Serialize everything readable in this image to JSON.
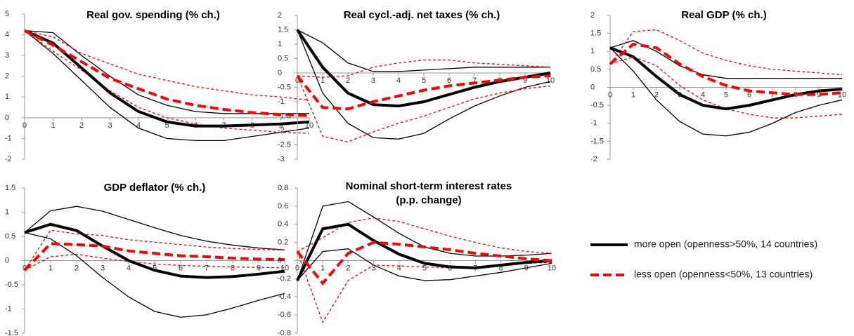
{
  "legend": [
    {
      "name": "more open (openness>50%, 14 countries)",
      "color": "#000000",
      "dashed": false
    },
    {
      "name": "less open (openness<50%, 13 countries)",
      "color": "#ff0000",
      "dashed": true
    }
  ],
  "chart_data": [
    {
      "type": "line",
      "title": "Real gov. spending (% ch.)",
      "x": [
        0,
        1,
        2,
        3,
        4,
        5,
        6,
        7,
        8,
        9,
        10
      ],
      "xlim": [
        0,
        10
      ],
      "xticks": [
        0,
        1,
        2,
        3,
        4,
        5,
        6,
        7,
        8,
        9,
        10
      ],
      "ylim": [
        -2,
        5
      ],
      "yticks": [
        -2,
        -1,
        0,
        1,
        2,
        3,
        4,
        5
      ],
      "series": [
        {
          "values": [
            4.2,
            3.6,
            2.4,
            1.2,
            0.3,
            -0.2,
            -0.4,
            -0.4,
            -0.35,
            -0.3,
            -0.2
          ],
          "upper": [
            4.2,
            4.1,
            3.0,
            2.0,
            1.1,
            0.6,
            0.3,
            0.2,
            0.2,
            0.2,
            0.2
          ],
          "lower": [
            4.2,
            3.1,
            1.8,
            0.5,
            -0.5,
            -1.0,
            -1.1,
            -1.1,
            -0.9,
            -0.7,
            -0.5
          ]
        },
        {
          "values": [
            4.2,
            3.5,
            2.7,
            1.9,
            1.4,
            0.9,
            0.6,
            0.4,
            0.25,
            0.15,
            0.1
          ],
          "upper": [
            4.2,
            3.9,
            3.1,
            2.6,
            2.1,
            1.8,
            1.5,
            1.3,
            1.1,
            1.0,
            0.85
          ],
          "lower": [
            4.2,
            3.2,
            2.3,
            1.3,
            0.5,
            0.0,
            -0.3,
            -0.5,
            -0.6,
            -0.7,
            -0.75
          ]
        }
      ]
    },
    {
      "type": "line",
      "title": "Real cycl.-adj. net taxes (% ch.)",
      "x": [
        0,
        1,
        2,
        3,
        4,
        5,
        6,
        7,
        8,
        9,
        10
      ],
      "xlim": [
        0,
        10
      ],
      "xticks": [
        0,
        1,
        2,
        3,
        4,
        5,
        6,
        7,
        8,
        9,
        10
      ],
      "ylim": [
        -3,
        2
      ],
      "yticks": [
        -3,
        -2.5,
        -2,
        -1.5,
        -1,
        -0.5,
        0,
        0.5,
        1,
        1.5,
        2
      ],
      "series": [
        {
          "values": [
            1.5,
            0.2,
            -0.7,
            -1.1,
            -1.15,
            -1.0,
            -0.75,
            -0.5,
            -0.3,
            -0.15,
            0.0
          ],
          "upper": [
            1.5,
            1.05,
            0.35,
            0.05,
            0.05,
            0.1,
            0.15,
            0.2,
            0.2,
            0.2,
            0.2
          ],
          "lower": [
            1.5,
            -0.7,
            -1.75,
            -2.25,
            -2.3,
            -2.1,
            -1.6,
            -1.15,
            -0.8,
            -0.5,
            -0.3
          ]
        },
        {
          "values": [
            -0.1,
            -1.2,
            -1.25,
            -1.0,
            -0.8,
            -0.6,
            -0.45,
            -0.35,
            -0.25,
            -0.15,
            -0.1
          ],
          "upper": [
            -0.1,
            -0.15,
            -0.1,
            0.2,
            0.35,
            0.45,
            0.45,
            0.35,
            0.3,
            0.25,
            0.2
          ],
          "lower": [
            -0.1,
            -2.2,
            -2.4,
            -2.05,
            -1.75,
            -1.5,
            -1.2,
            -0.9,
            -0.7,
            -0.55,
            -0.45
          ]
        }
      ]
    },
    {
      "type": "line",
      "title": "Real GDP (% ch.)",
      "x": [
        0,
        1,
        2,
        3,
        4,
        5,
        6,
        7,
        8,
        9,
        10
      ],
      "xlim": [
        0,
        10
      ],
      "xticks": [
        0,
        1,
        2,
        3,
        4,
        5,
        6,
        7,
        8,
        9,
        10
      ],
      "ylim": [
        -2,
        2
      ],
      "yticks": [
        -2,
        -1.5,
        -1,
        -0.5,
        0,
        0.5,
        1,
        1.5,
        2
      ],
      "series": [
        {
          "values": [
            1.1,
            0.85,
            0.3,
            -0.2,
            -0.5,
            -0.6,
            -0.5,
            -0.35,
            -0.2,
            -0.1,
            -0.05
          ],
          "upper": [
            1.1,
            1.3,
            1.0,
            0.6,
            0.35,
            0.25,
            0.25,
            0.25,
            0.25,
            0.25,
            0.25
          ],
          "lower": [
            1.1,
            0.45,
            -0.35,
            -0.95,
            -1.3,
            -1.35,
            -1.25,
            -1.0,
            -0.7,
            -0.5,
            -0.35
          ]
        },
        {
          "values": [
            0.65,
            1.2,
            1.1,
            0.65,
            0.3,
            0.05,
            -0.1,
            -0.15,
            -0.2,
            -0.2,
            -0.15
          ],
          "upper": [
            0.65,
            1.55,
            1.6,
            1.3,
            0.95,
            0.75,
            0.6,
            0.5,
            0.45,
            0.4,
            0.35
          ],
          "lower": [
            0.65,
            0.85,
            0.6,
            0.05,
            -0.35,
            -0.6,
            -0.75,
            -0.85,
            -0.85,
            -0.8,
            -0.75
          ]
        }
      ]
    },
    {
      "type": "line",
      "title": "GDP deflator (% ch.)",
      "x": [
        0,
        1,
        2,
        3,
        4,
        5,
        6,
        7,
        8,
        9,
        10
      ],
      "xlim": [
        0,
        10
      ],
      "xticks": [
        0,
        1,
        2,
        3,
        4,
        5,
        6,
        7,
        8,
        9,
        10
      ],
      "ylim": [
        -1.5,
        1.5
      ],
      "yticks": [
        -1.5,
        -1,
        -0.5,
        0,
        0.5,
        1,
        1.5
      ],
      "series": [
        {
          "values": [
            0.58,
            0.75,
            0.62,
            0.3,
            0.0,
            -0.2,
            -0.32,
            -0.35,
            -0.33,
            -0.28,
            -0.22
          ],
          "upper": [
            0.58,
            1.03,
            1.12,
            1.02,
            0.85,
            0.68,
            0.52,
            0.4,
            0.32,
            0.26,
            0.22
          ],
          "lower": [
            0.58,
            0.45,
            0.1,
            -0.35,
            -0.75,
            -1.05,
            -1.17,
            -1.12,
            -0.98,
            -0.82,
            -0.68
          ]
        },
        {
          "values": [
            -0.2,
            0.35,
            0.33,
            0.3,
            0.2,
            0.15,
            0.1,
            0.08,
            0.05,
            0.03,
            0.02
          ],
          "upper": [
            -0.2,
            0.63,
            0.55,
            0.52,
            0.43,
            0.38,
            0.33,
            0.28,
            0.25,
            0.23,
            0.22
          ],
          "lower": [
            -0.2,
            0.08,
            0.13,
            0.05,
            -0.02,
            -0.07,
            -0.1,
            -0.12,
            -0.13,
            -0.14,
            -0.15
          ]
        }
      ]
    },
    {
      "type": "line",
      "title": "Nominal short-term interest rates",
      "subtitle": "(p.p. change)",
      "x": [
        0,
        1,
        2,
        3,
        4,
        5,
        6,
        7,
        8,
        9,
        10
      ],
      "xlim": [
        0,
        10
      ],
      "xticks": [
        0,
        1,
        2,
        3,
        4,
        5,
        6,
        7,
        8,
        9,
        10
      ],
      "ylim": [
        -0.8,
        0.8
      ],
      "yticks": [
        -0.8,
        -0.6,
        -0.4,
        -0.2,
        0,
        0.2,
        0.4,
        0.6,
        0.8
      ],
      "series": [
        {
          "values": [
            -0.22,
            0.35,
            0.4,
            0.22,
            0.07,
            -0.03,
            -0.07,
            -0.08,
            -0.05,
            -0.02,
            0.0
          ],
          "upper": [
            -0.22,
            0.6,
            0.65,
            0.48,
            0.3,
            0.15,
            0.08,
            0.05,
            0.05,
            0.06,
            0.08
          ],
          "lower": [
            -0.22,
            0.1,
            0.13,
            -0.05,
            -0.17,
            -0.22,
            -0.21,
            -0.17,
            -0.13,
            -0.08,
            -0.03
          ]
        },
        {
          "values": [
            0.1,
            -0.25,
            0.08,
            0.2,
            0.18,
            0.15,
            0.12,
            0.08,
            0.05,
            0.02,
            0.0
          ],
          "upper": [
            0.1,
            0.25,
            0.42,
            0.47,
            0.43,
            0.35,
            0.27,
            0.2,
            0.14,
            0.1,
            0.08
          ],
          "lower": [
            0.1,
            -0.68,
            -0.22,
            -0.05,
            -0.06,
            -0.07,
            -0.08,
            -0.07,
            -0.05,
            -0.03,
            -0.02
          ]
        }
      ]
    }
  ]
}
